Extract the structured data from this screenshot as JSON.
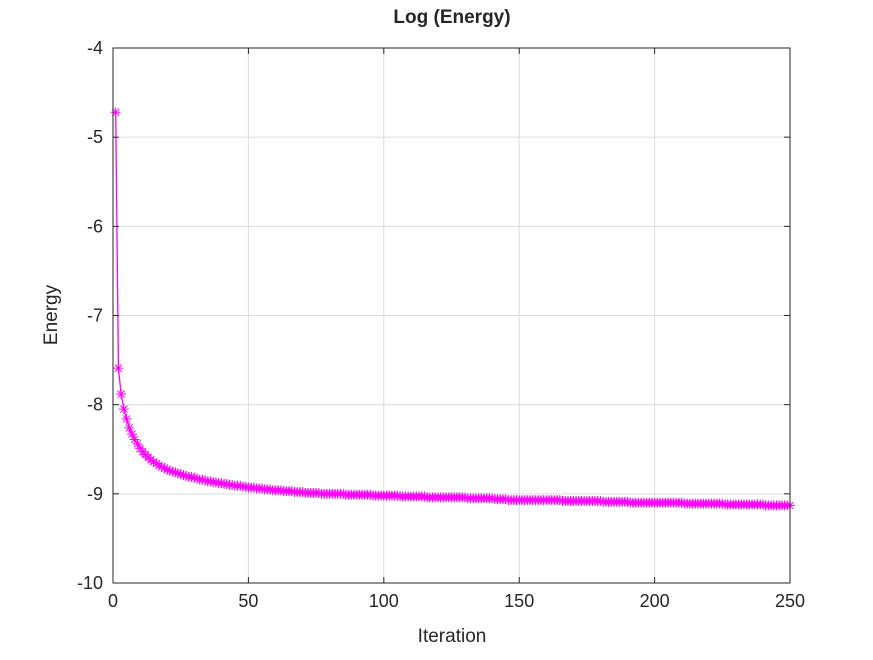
{
  "chart_data": {
    "type": "line",
    "title": "Log (Energy)",
    "xlabel": "Iteration",
    "ylabel": "Energy",
    "xlim": [
      0,
      250
    ],
    "ylim": [
      -10,
      -4
    ],
    "xticks": [
      "0",
      "50",
      "100",
      "150",
      "200",
      "250"
    ],
    "yticks": [
      "-10",
      "-9",
      "-8",
      "-7",
      "-6",
      "-5",
      "-4"
    ],
    "grid": true,
    "marker": "asterisk",
    "color": "#ff00ff",
    "series": [
      {
        "x_start": 1,
        "x_step": 1,
        "values": [
          -4.72,
          -7.59,
          -7.88,
          -8.05,
          -8.16,
          -8.26,
          -8.33,
          -8.39,
          -8.44,
          -8.49,
          -8.53,
          -8.56,
          -8.59,
          -8.62,
          -8.64,
          -8.66,
          -8.68,
          -8.7,
          -8.71,
          -8.73,
          -8.74,
          -8.75,
          -8.76,
          -8.77,
          -8.78,
          -8.79,
          -8.8,
          -8.81,
          -8.81,
          -8.82,
          -8.83,
          -8.84,
          -8.84,
          -8.85,
          -8.86,
          -8.86,
          -8.87,
          -8.87,
          -8.88,
          -8.88,
          -8.89,
          -8.89,
          -8.9,
          -8.9,
          -8.91,
          -8.91,
          -8.91,
          -8.92,
          -8.92,
          -8.93,
          -8.93,
          -8.93,
          -8.94,
          -8.94,
          -8.94,
          -8.95,
          -8.95,
          -8.95,
          -8.96,
          -8.96,
          -8.96,
          -8.96,
          -8.97,
          -8.97,
          -8.97,
          -8.97,
          -8.98,
          -8.98,
          -8.98,
          -8.98,
          -8.99,
          -8.99,
          -8.99,
          -8.99,
          -8.99,
          -8.99,
          -9.0,
          -9.0,
          -9.0,
          -9.0,
          -9.0,
          -9.0,
          -9.0,
          -9.0,
          -9.0,
          -9.01,
          -9.01,
          -9.01,
          -9.01,
          -9.01,
          -9.01,
          -9.01,
          -9.01,
          -9.01,
          -9.01,
          -9.02,
          -9.02,
          -9.02,
          -9.02,
          -9.02,
          -9.02,
          -9.02,
          -9.02,
          -9.02,
          -9.02,
          -9.03,
          -9.03,
          -9.03,
          -9.03,
          -9.03,
          -9.03,
          -9.03,
          -9.03,
          -9.03,
          -9.03,
          -9.04,
          -9.04,
          -9.04,
          -9.04,
          -9.04,
          -9.04,
          -9.04,
          -9.04,
          -9.04,
          -9.04,
          -9.04,
          -9.04,
          -9.04,
          -9.04,
          -9.04,
          -9.05,
          -9.05,
          -9.05,
          -9.05,
          -9.05,
          -9.05,
          -9.05,
          -9.05,
          -9.05,
          -9.05,
          -9.06,
          -9.06,
          -9.06,
          -9.06,
          -9.06,
          -9.07,
          -9.07,
          -9.07,
          -9.07,
          -9.07,
          -9.07,
          -9.07,
          -9.07,
          -9.07,
          -9.07,
          -9.07,
          -9.07,
          -9.07,
          -9.07,
          -9.07,
          -9.07,
          -9.07,
          -9.07,
          -9.07,
          -9.07,
          -9.08,
          -9.08,
          -9.08,
          -9.08,
          -9.08,
          -9.08,
          -9.08,
          -9.08,
          -9.08,
          -9.08,
          -9.08,
          -9.08,
          -9.08,
          -9.08,
          -9.08,
          -9.09,
          -9.09,
          -9.09,
          -9.09,
          -9.09,
          -9.09,
          -9.09,
          -9.09,
          -9.09,
          -9.09,
          -9.1,
          -9.1,
          -9.1,
          -9.1,
          -9.1,
          -9.1,
          -9.1,
          -9.1,
          -9.1,
          -9.1,
          -9.1,
          -9.1,
          -9.1,
          -9.1,
          -9.1,
          -9.1,
          -9.1,
          -9.1,
          -9.1,
          -9.1,
          -9.11,
          -9.11,
          -9.11,
          -9.11,
          -9.11,
          -9.11,
          -9.11,
          -9.11,
          -9.11,
          -9.11,
          -9.11,
          -9.11,
          -9.11,
          -9.11,
          -9.11,
          -9.12,
          -9.12,
          -9.12,
          -9.12,
          -9.12,
          -9.12,
          -9.12,
          -9.12,
          -9.12,
          -9.12,
          -9.12,
          -9.12,
          -9.12,
          -9.12,
          -9.12,
          -9.13,
          -9.13,
          -9.13,
          -9.13,
          -9.13,
          -9.13,
          -9.13,
          -9.13,
          -9.13,
          -9.13
        ]
      }
    ]
  }
}
